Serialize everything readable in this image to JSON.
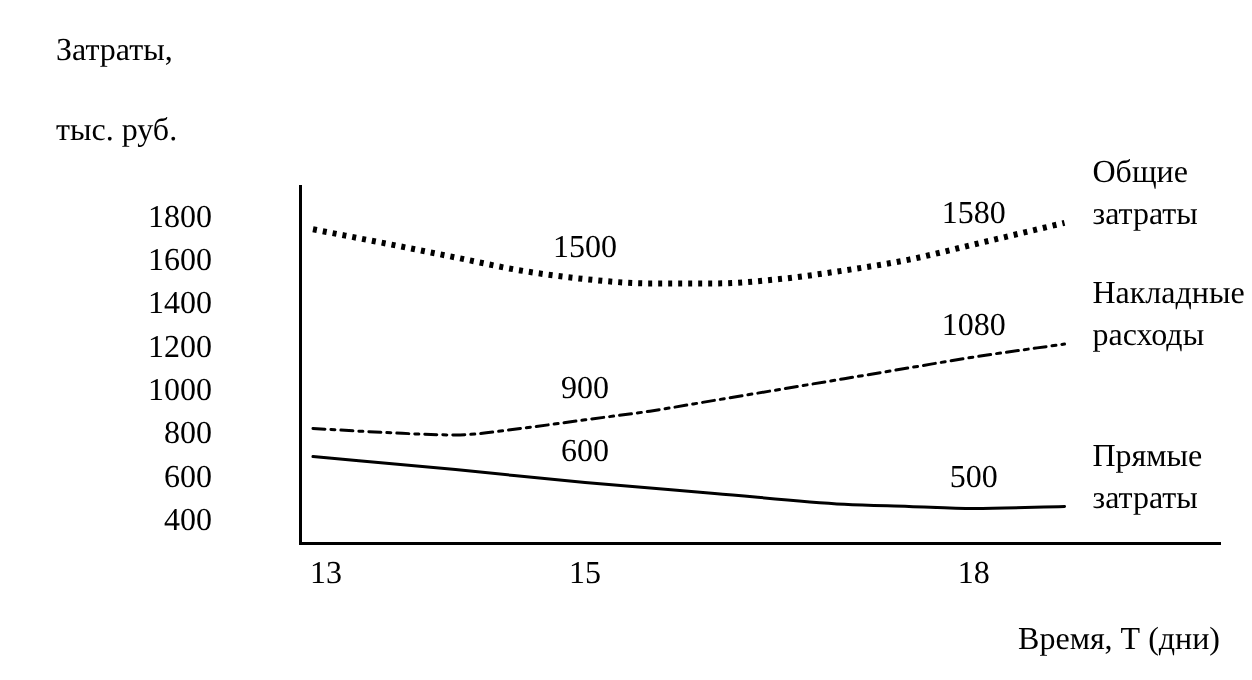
{
  "chart_data": {
    "type": "line",
    "ylabel": "Затраты, тыс. руб.",
    "xlabel": "Время, Т (дни)",
    "xlim": [
      12.8,
      19.9
    ],
    "xticks": [
      13,
      15,
      18
    ],
    "ylim": [
      300,
      1950
    ],
    "yticks": [
      400,
      600,
      800,
      1000,
      1200,
      1400,
      1600,
      1800
    ],
    "grid": false,
    "legend": false,
    "marker": "none",
    "series": [
      {
        "name": "Общие затраты",
        "color": "#000000",
        "line_style": "dotted",
        "x": [
          12.9,
          13.5,
          14,
          14.5,
          15,
          15.5,
          16,
          16.5,
          17,
          17.5,
          18,
          18.7
        ],
        "values": [
          1750,
          1680,
          1620,
          1560,
          1520,
          1500,
          1500,
          1520,
          1560,
          1610,
          1680,
          1780
        ]
      },
      {
        "name": "Накладные расходы",
        "color": "#000000",
        "line_style": "dashed",
        "x": [
          12.9,
          13.5,
          14,
          14.5,
          15,
          15.5,
          16,
          16.5,
          17,
          17.5,
          18,
          18.7
        ],
        "values": [
          830,
          810,
          800,
          830,
          870,
          910,
          960,
          1010,
          1060,
          1110,
          1160,
          1220
        ]
      },
      {
        "name": "Прямые затраты",
        "color": "#000000",
        "line_style": "solid",
        "x": [
          12.9,
          14,
          15,
          16,
          17,
          17.5,
          18,
          18.7
        ],
        "values": [
          700,
          640,
          580,
          530,
          480,
          470,
          460,
          470
        ]
      }
    ],
    "annotations": [
      "1500",
      "1580",
      "900",
      "1080",
      "600",
      "500"
    ]
  }
}
